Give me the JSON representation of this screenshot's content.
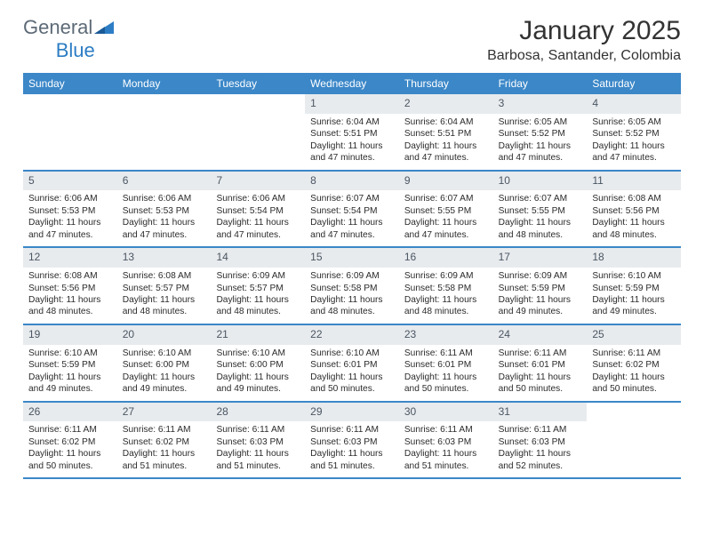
{
  "logo": {
    "text1": "General",
    "text2": "Blue"
  },
  "title": "January 2025",
  "location": "Barbosa, Santander, Colombia",
  "colors": {
    "header_bg": "#3b87c8",
    "header_text": "#ffffff",
    "daynum_bg": "#e8ebee",
    "daynum_text": "#4a5662",
    "border": "#3b87c8",
    "body_text": "#2b2b2b",
    "logo_gray": "#5d6a76",
    "logo_blue": "#2c7dc4"
  },
  "weekdays": [
    "Sunday",
    "Monday",
    "Tuesday",
    "Wednesday",
    "Thursday",
    "Friday",
    "Saturday"
  ],
  "weeks": [
    [
      null,
      null,
      null,
      {
        "d": "1",
        "sr": "Sunrise: 6:04 AM",
        "ss": "Sunset: 5:51 PM",
        "dl1": "Daylight: 11 hours",
        "dl2": "and 47 minutes."
      },
      {
        "d": "2",
        "sr": "Sunrise: 6:04 AM",
        "ss": "Sunset: 5:51 PM",
        "dl1": "Daylight: 11 hours",
        "dl2": "and 47 minutes."
      },
      {
        "d": "3",
        "sr": "Sunrise: 6:05 AM",
        "ss": "Sunset: 5:52 PM",
        "dl1": "Daylight: 11 hours",
        "dl2": "and 47 minutes."
      },
      {
        "d": "4",
        "sr": "Sunrise: 6:05 AM",
        "ss": "Sunset: 5:52 PM",
        "dl1": "Daylight: 11 hours",
        "dl2": "and 47 minutes."
      }
    ],
    [
      {
        "d": "5",
        "sr": "Sunrise: 6:06 AM",
        "ss": "Sunset: 5:53 PM",
        "dl1": "Daylight: 11 hours",
        "dl2": "and 47 minutes."
      },
      {
        "d": "6",
        "sr": "Sunrise: 6:06 AM",
        "ss": "Sunset: 5:53 PM",
        "dl1": "Daylight: 11 hours",
        "dl2": "and 47 minutes."
      },
      {
        "d": "7",
        "sr": "Sunrise: 6:06 AM",
        "ss": "Sunset: 5:54 PM",
        "dl1": "Daylight: 11 hours",
        "dl2": "and 47 minutes."
      },
      {
        "d": "8",
        "sr": "Sunrise: 6:07 AM",
        "ss": "Sunset: 5:54 PM",
        "dl1": "Daylight: 11 hours",
        "dl2": "and 47 minutes."
      },
      {
        "d": "9",
        "sr": "Sunrise: 6:07 AM",
        "ss": "Sunset: 5:55 PM",
        "dl1": "Daylight: 11 hours",
        "dl2": "and 47 minutes."
      },
      {
        "d": "10",
        "sr": "Sunrise: 6:07 AM",
        "ss": "Sunset: 5:55 PM",
        "dl1": "Daylight: 11 hours",
        "dl2": "and 48 minutes."
      },
      {
        "d": "11",
        "sr": "Sunrise: 6:08 AM",
        "ss": "Sunset: 5:56 PM",
        "dl1": "Daylight: 11 hours",
        "dl2": "and 48 minutes."
      }
    ],
    [
      {
        "d": "12",
        "sr": "Sunrise: 6:08 AM",
        "ss": "Sunset: 5:56 PM",
        "dl1": "Daylight: 11 hours",
        "dl2": "and 48 minutes."
      },
      {
        "d": "13",
        "sr": "Sunrise: 6:08 AM",
        "ss": "Sunset: 5:57 PM",
        "dl1": "Daylight: 11 hours",
        "dl2": "and 48 minutes."
      },
      {
        "d": "14",
        "sr": "Sunrise: 6:09 AM",
        "ss": "Sunset: 5:57 PM",
        "dl1": "Daylight: 11 hours",
        "dl2": "and 48 minutes."
      },
      {
        "d": "15",
        "sr": "Sunrise: 6:09 AM",
        "ss": "Sunset: 5:58 PM",
        "dl1": "Daylight: 11 hours",
        "dl2": "and 48 minutes."
      },
      {
        "d": "16",
        "sr": "Sunrise: 6:09 AM",
        "ss": "Sunset: 5:58 PM",
        "dl1": "Daylight: 11 hours",
        "dl2": "and 48 minutes."
      },
      {
        "d": "17",
        "sr": "Sunrise: 6:09 AM",
        "ss": "Sunset: 5:59 PM",
        "dl1": "Daylight: 11 hours",
        "dl2": "and 49 minutes."
      },
      {
        "d": "18",
        "sr": "Sunrise: 6:10 AM",
        "ss": "Sunset: 5:59 PM",
        "dl1": "Daylight: 11 hours",
        "dl2": "and 49 minutes."
      }
    ],
    [
      {
        "d": "19",
        "sr": "Sunrise: 6:10 AM",
        "ss": "Sunset: 5:59 PM",
        "dl1": "Daylight: 11 hours",
        "dl2": "and 49 minutes."
      },
      {
        "d": "20",
        "sr": "Sunrise: 6:10 AM",
        "ss": "Sunset: 6:00 PM",
        "dl1": "Daylight: 11 hours",
        "dl2": "and 49 minutes."
      },
      {
        "d": "21",
        "sr": "Sunrise: 6:10 AM",
        "ss": "Sunset: 6:00 PM",
        "dl1": "Daylight: 11 hours",
        "dl2": "and 49 minutes."
      },
      {
        "d": "22",
        "sr": "Sunrise: 6:10 AM",
        "ss": "Sunset: 6:01 PM",
        "dl1": "Daylight: 11 hours",
        "dl2": "and 50 minutes."
      },
      {
        "d": "23",
        "sr": "Sunrise: 6:11 AM",
        "ss": "Sunset: 6:01 PM",
        "dl1": "Daylight: 11 hours",
        "dl2": "and 50 minutes."
      },
      {
        "d": "24",
        "sr": "Sunrise: 6:11 AM",
        "ss": "Sunset: 6:01 PM",
        "dl1": "Daylight: 11 hours",
        "dl2": "and 50 minutes."
      },
      {
        "d": "25",
        "sr": "Sunrise: 6:11 AM",
        "ss": "Sunset: 6:02 PM",
        "dl1": "Daylight: 11 hours",
        "dl2": "and 50 minutes."
      }
    ],
    [
      {
        "d": "26",
        "sr": "Sunrise: 6:11 AM",
        "ss": "Sunset: 6:02 PM",
        "dl1": "Daylight: 11 hours",
        "dl2": "and 50 minutes."
      },
      {
        "d": "27",
        "sr": "Sunrise: 6:11 AM",
        "ss": "Sunset: 6:02 PM",
        "dl1": "Daylight: 11 hours",
        "dl2": "and 51 minutes."
      },
      {
        "d": "28",
        "sr": "Sunrise: 6:11 AM",
        "ss": "Sunset: 6:03 PM",
        "dl1": "Daylight: 11 hours",
        "dl2": "and 51 minutes."
      },
      {
        "d": "29",
        "sr": "Sunrise: 6:11 AM",
        "ss": "Sunset: 6:03 PM",
        "dl1": "Daylight: 11 hours",
        "dl2": "and 51 minutes."
      },
      {
        "d": "30",
        "sr": "Sunrise: 6:11 AM",
        "ss": "Sunset: 6:03 PM",
        "dl1": "Daylight: 11 hours",
        "dl2": "and 51 minutes."
      },
      {
        "d": "31",
        "sr": "Sunrise: 6:11 AM",
        "ss": "Sunset: 6:03 PM",
        "dl1": "Daylight: 11 hours",
        "dl2": "and 52 minutes."
      },
      null
    ]
  ]
}
